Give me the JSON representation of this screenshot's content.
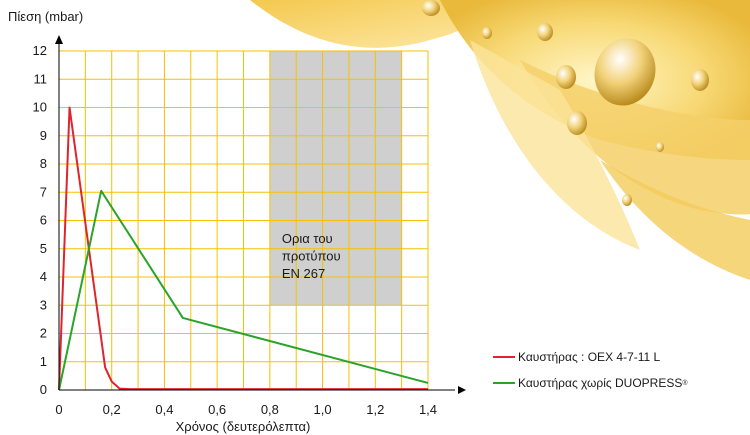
{
  "chart_data": {
    "type": "line",
    "ylabel": "Πίεση (mbar)",
    "xlabel": "Χρόνος (δευτερόλεπτα)",
    "xlim": [
      0,
      1.4
    ],
    "ylim": [
      0,
      12
    ],
    "xticks": [
      0,
      0.2,
      0.4,
      0.6,
      0.8,
      1.0,
      1.2,
      1.4
    ],
    "xtick_labels": [
      "0",
      "0,2",
      "0,4",
      "0,6",
      "0,8",
      "1,0",
      "1,2",
      "1,4"
    ],
    "yticks": [
      0,
      1,
      2,
      3,
      4,
      5,
      6,
      7,
      8,
      9,
      10,
      11,
      12
    ],
    "grid": true,
    "grid_color": "#f4c200",
    "region": {
      "x": [
        0.8,
        1.3
      ],
      "y": [
        3,
        12
      ],
      "color": "#cfcfcf",
      "label_lines": [
        "Ορια του",
        "προτύπου",
        "EN 267"
      ]
    },
    "series": [
      {
        "name": "Καυστήρας : OEX 4-7-11 L",
        "color": "#e0242b",
        "x": [
          0,
          0.04,
          0.175,
          0.2,
          0.23,
          0.27,
          1.4
        ],
        "y": [
          0,
          10,
          0.8,
          0.3,
          0.05,
          0.03,
          0.03
        ]
      },
      {
        "name": "Καυστήρας χωρίς DUOPRESS",
        "name_sup": "®",
        "color": "#2aa32a",
        "x": [
          0,
          0.16,
          0.47,
          1.4
        ],
        "y": [
          0,
          7.05,
          2.55,
          0.25
        ]
      }
    ]
  }
}
